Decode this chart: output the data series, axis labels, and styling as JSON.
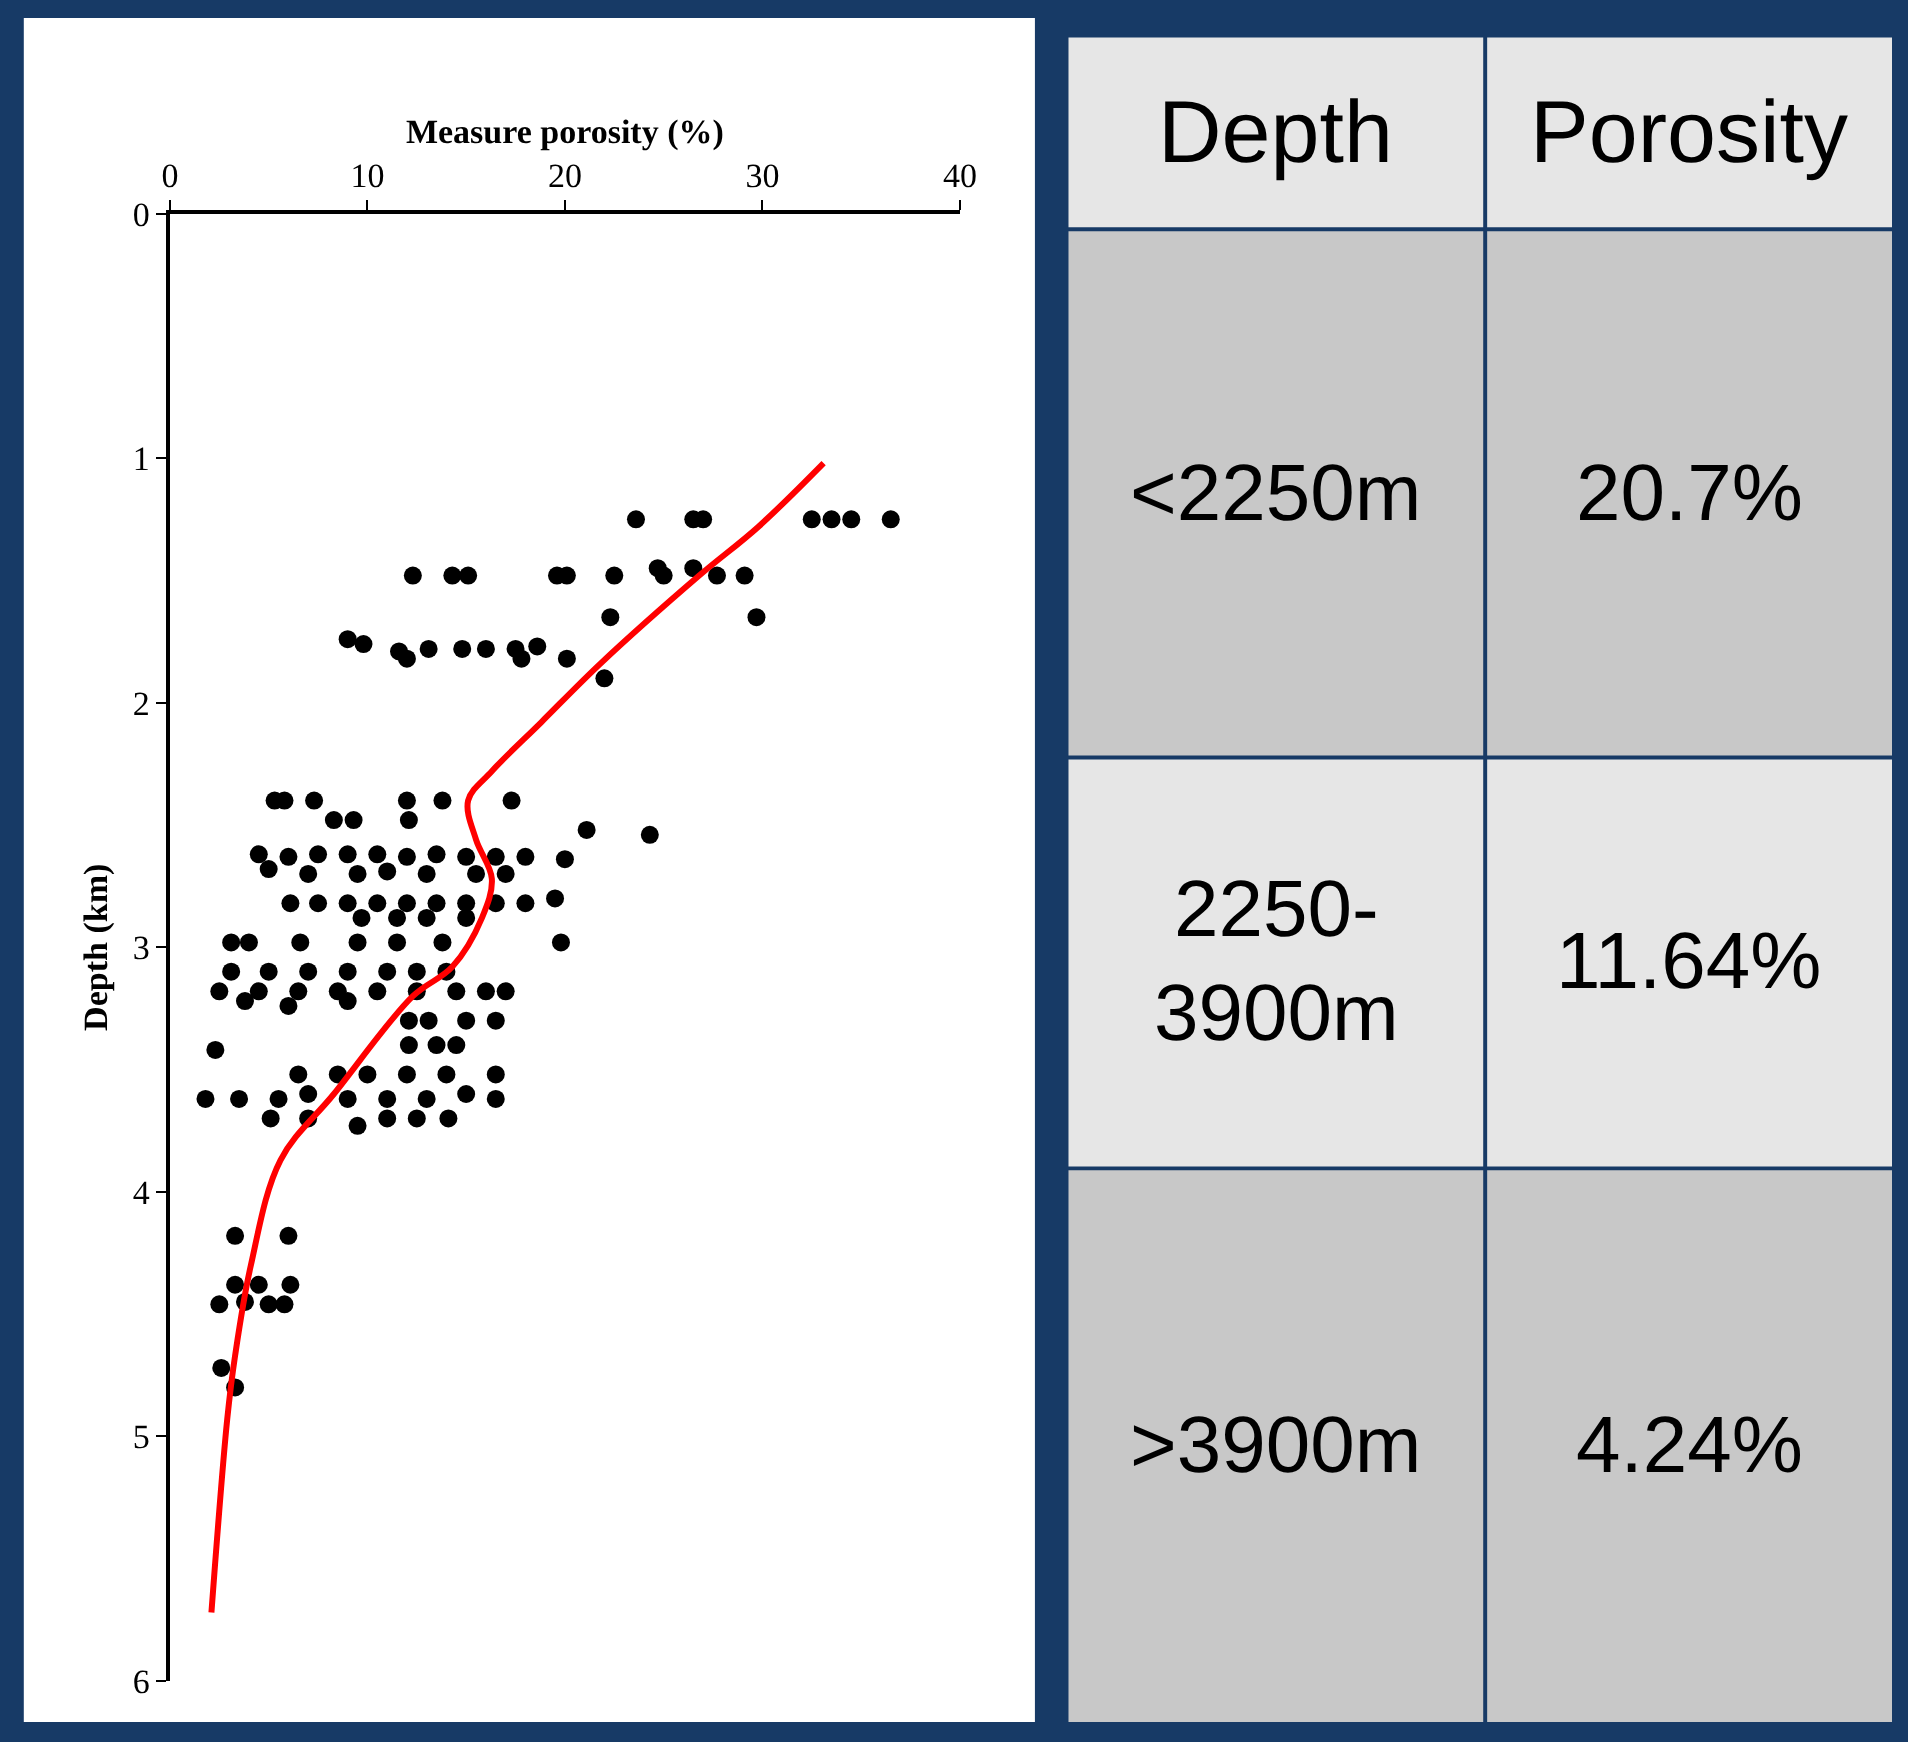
{
  "chart_data": [
    {
      "type": "scatter",
      "xlabel": "Measure porosity (%)",
      "ylabel": "Depth (km)",
      "xlim": [
        0,
        40
      ],
      "xticks": [
        0,
        10,
        20,
        30,
        40
      ],
      "ylim": [
        6,
        0
      ],
      "yticks": [
        0,
        1,
        2,
        3,
        4,
        5,
        6
      ],
      "series": [
        {
          "type": "scatter",
          "marker": "circle",
          "color": "#000000",
          "x": [
            23.6,
            26.5,
            27.0,
            32.5,
            33.5,
            34.5,
            36.5,
            24.7,
            26.5,
            29.1,
            12.3,
            14.3,
            15.1,
            19.6,
            20.1,
            22.5,
            25.0,
            27.7,
            22.3,
            29.7,
            9.0,
            9.8,
            11.6,
            13.1,
            14.8,
            16.0,
            17.5,
            18.6,
            12.0,
            17.8,
            20.1,
            22.0,
            5.3,
            5.8,
            7.3,
            12.0,
            13.8,
            17.3,
            8.3,
            9.3,
            12.1,
            21.1,
            24.3,
            4.5,
            6,
            7.5,
            9,
            10.5,
            12,
            13.5,
            15,
            16.5,
            18,
            20.0,
            5,
            7,
            9.5,
            11,
            13,
            15.5,
            17,
            6.1,
            7.5,
            9,
            10.5,
            12,
            13.5,
            15,
            16.5,
            18,
            19.5,
            9.7,
            11.5,
            13,
            15,
            3.1,
            4.0,
            6.6,
            9.5,
            11.5,
            13.8,
            19.8,
            3.1,
            5,
            7,
            9,
            11,
            12.5,
            14,
            2.5,
            4.5,
            6.5,
            8.5,
            10.5,
            12.5,
            14.5,
            16,
            17,
            3.8,
            6,
            9,
            12.1,
            13.1,
            15,
            16.5,
            12.1,
            13.5,
            14.5,
            2.3,
            6.5,
            8.5,
            10,
            12,
            14,
            16.5,
            1.8,
            3.5,
            5.5,
            7,
            9,
            11,
            13,
            15,
            16.5,
            5.1,
            7,
            11,
            12.5,
            14.1,
            9.5,
            3.3,
            6.0,
            3.3,
            4.5,
            6.1,
            2.5,
            3.8,
            5,
            5.8,
            2.6,
            3.3
          ],
          "values": [
            1.25,
            1.25,
            1.25,
            1.25,
            1.25,
            1.25,
            1.25,
            1.45,
            1.45,
            1.48,
            1.48,
            1.48,
            1.48,
            1.48,
            1.48,
            1.48,
            1.48,
            1.48,
            1.65,
            1.65,
            1.74,
            1.76,
            1.79,
            1.78,
            1.78,
            1.78,
            1.78,
            1.77,
            1.82,
            1.82,
            1.82,
            1.9,
            2.4,
            2.4,
            2.4,
            2.4,
            2.4,
            2.4,
            2.48,
            2.48,
            2.48,
            2.52,
            2.54,
            2.62,
            2.63,
            2.62,
            2.62,
            2.62,
            2.63,
            2.62,
            2.63,
            2.63,
            2.63,
            2.64,
            2.68,
            2.7,
            2.7,
            2.69,
            2.7,
            2.7,
            2.7,
            2.82,
            2.82,
            2.82,
            2.82,
            2.82,
            2.82,
            2.82,
            2.82,
            2.82,
            2.8,
            2.88,
            2.88,
            2.88,
            2.88,
            2.98,
            2.98,
            2.98,
            2.98,
            2.98,
            2.98,
            2.98,
            3.1,
            3.1,
            3.1,
            3.1,
            3.1,
            3.1,
            3.1,
            3.18,
            3.18,
            3.18,
            3.18,
            3.18,
            3.18,
            3.18,
            3.18,
            3.18,
            3.22,
            3.24,
            3.22,
            3.3,
            3.3,
            3.3,
            3.3,
            3.4,
            3.4,
            3.4,
            3.42,
            3.52,
            3.52,
            3.52,
            3.52,
            3.52,
            3.52,
            3.62,
            3.62,
            3.62,
            3.6,
            3.62,
            3.62,
            3.62,
            3.6,
            3.62,
            3.7,
            3.7,
            3.7,
            3.7,
            3.7,
            3.73,
            4.18,
            4.18,
            4.38,
            4.38,
            4.38,
            4.46,
            4.45,
            4.46,
            4.46,
            4.72,
            4.8
          ]
        },
        {
          "type": "line",
          "marker": "none",
          "color": "#ff0000",
          "line_style": "solid",
          "x": [
            33.1,
            29.8,
            26.8,
            21.8,
            18.8,
            16.3,
            15.1,
            15.5,
            16.3,
            15.8,
            14.3,
            12.3,
            8.3,
            5.6,
            4.1,
            3.3,
            2.9,
            2.1
          ],
          "values": [
            1.02,
            1.28,
            1.48,
            1.84,
            2.08,
            2.28,
            2.4,
            2.56,
            2.72,
            2.88,
            3.08,
            3.2,
            3.6,
            3.87,
            4.3,
            4.67,
            4.93,
            5.72
          ]
        }
      ]
    },
    {
      "type": "other",
      "annotations": [
        "Depth",
        "Porosity",
        "<2250m",
        "20.7%",
        "2250-3900m",
        "11.64%",
        ">3900m",
        "4.24%"
      ]
    }
  ]
}
